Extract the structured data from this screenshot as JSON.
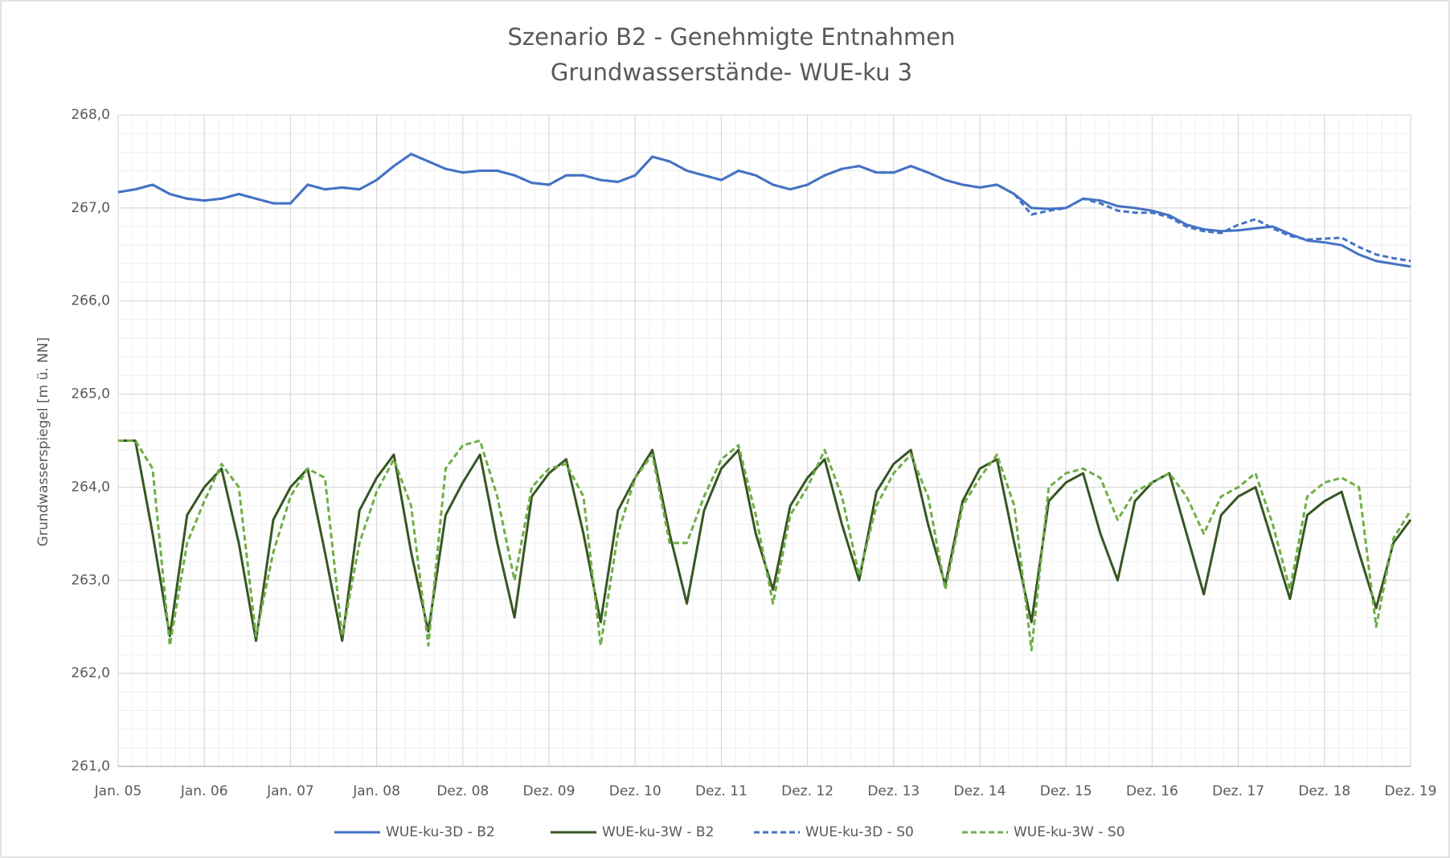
{
  "chart_data": {
    "type": "line",
    "title": "Szenario B2 - Genehmigte Entnahmen",
    "subtitle": "Grundwasserstände- WUE-ku 3",
    "y_label": "Grundwasserspiegel [m ü. NN]",
    "grid": true,
    "legend": "bottom",
    "xlim": [
      0,
      15
    ],
    "xticks": [
      {
        "value": 0,
        "label": "Jan. 05"
      },
      {
        "value": 1,
        "label": "Jan. 06"
      },
      {
        "value": 2,
        "label": "Jan. 07"
      },
      {
        "value": 3,
        "label": "Jan. 08"
      },
      {
        "value": 4,
        "label": "Dez. 08"
      },
      {
        "value": 5,
        "label": "Dez. 09"
      },
      {
        "value": 6,
        "label": "Dez. 10"
      },
      {
        "value": 7,
        "label": "Dez. 11"
      },
      {
        "value": 8,
        "label": "Dez. 12"
      },
      {
        "value": 9,
        "label": "Dez. 13"
      },
      {
        "value": 10,
        "label": "Dez. 14"
      },
      {
        "value": 11,
        "label": "Dez. 15"
      },
      {
        "value": 12,
        "label": "Dez. 16"
      },
      {
        "value": 13,
        "label": "Dez. 17"
      },
      {
        "value": 14,
        "label": "Dez. 18"
      },
      {
        "value": 15,
        "label": "Dez. 19"
      }
    ],
    "ylim": [
      261,
      268
    ],
    "yticks": [
      {
        "value": 261,
        "label": "261,0"
      },
      {
        "value": 262,
        "label": "262,0"
      },
      {
        "value": 263,
        "label": "263,0"
      },
      {
        "value": 264,
        "label": "264,0"
      },
      {
        "value": 265,
        "label": "265,0"
      },
      {
        "value": 266,
        "label": "266,0"
      },
      {
        "value": 267,
        "label": "267,0"
      },
      {
        "value": 268,
        "label": "268,0"
      }
    ],
    "x": [
      0,
      0.2,
      0.4,
      0.6,
      0.8,
      1,
      1.2,
      1.4,
      1.6,
      1.8,
      2,
      2.2,
      2.4,
      2.6,
      2.8,
      3,
      3.2,
      3.4,
      3.6,
      3.8,
      4,
      4.2,
      4.4,
      4.6,
      4.8,
      5,
      5.2,
      5.4,
      5.6,
      5.8,
      6,
      6.2,
      6.4,
      6.6,
      6.8,
      7,
      7.2,
      7.4,
      7.6,
      7.8,
      8,
      8.2,
      8.4,
      8.6,
      8.8,
      9,
      9.2,
      9.4,
      9.6,
      9.8,
      10,
      10.2,
      10.4,
      10.6,
      10.8,
      11,
      11.2,
      11.4,
      11.6,
      11.8,
      12,
      12.2,
      12.4,
      12.6,
      12.8,
      13,
      13.2,
      13.4,
      13.6,
      13.8,
      14,
      14.2,
      14.4,
      14.6,
      14.8,
      15
    ],
    "series": [
      {
        "name": "WUE-ku-3D - B2",
        "color": "#4472c4",
        "dashed": false,
        "values": [
          267.17,
          267.2,
          267.25,
          267.15,
          267.1,
          267.08,
          267.1,
          267.15,
          267.1,
          267.05,
          267.05,
          267.25,
          267.2,
          267.22,
          267.2,
          267.3,
          267.45,
          267.58,
          267.5,
          267.42,
          267.38,
          267.4,
          267.4,
          267.35,
          267.27,
          267.25,
          267.35,
          267.35,
          267.3,
          267.28,
          267.35,
          267.55,
          267.5,
          267.4,
          267.35,
          267.3,
          267.4,
          267.35,
          267.25,
          267.2,
          267.25,
          267.35,
          267.42,
          267.45,
          267.38,
          267.38,
          267.45,
          267.38,
          267.3,
          267.25,
          267.22,
          267.25,
          267.15,
          267.0,
          266.99,
          267.0,
          267.1,
          267.08,
          267.02,
          267.0,
          266.97,
          266.92,
          266.82,
          266.77,
          266.75,
          266.76,
          266.78,
          266.8,
          266.72,
          266.65,
          266.63,
          266.6,
          266.5,
          266.43,
          266.4,
          266.37
        ]
      },
      {
        "name": "WUE-ku-3W - B2",
        "color": "#375623",
        "dashed": false,
        "values": [
          264.5,
          264.5,
          263.5,
          262.4,
          263.7,
          264.0,
          264.2,
          263.4,
          262.35,
          263.65,
          264.0,
          264.2,
          263.3,
          262.35,
          263.75,
          264.1,
          264.35,
          263.3,
          262.45,
          263.7,
          264.05,
          264.35,
          263.4,
          262.6,
          263.9,
          264.15,
          264.3,
          263.5,
          262.55,
          263.75,
          264.1,
          264.4,
          263.5,
          262.75,
          263.75,
          264.2,
          264.4,
          263.5,
          262.9,
          263.8,
          264.1,
          264.3,
          263.6,
          263.0,
          263.95,
          264.25,
          264.4,
          263.6,
          262.95,
          263.85,
          264.2,
          264.3,
          263.4,
          262.55,
          263.85,
          264.05,
          264.15,
          263.5,
          263.0,
          263.85,
          264.05,
          264.15,
          263.5,
          262.85,
          263.7,
          263.9,
          264.0,
          263.4,
          262.8,
          263.7,
          263.85,
          263.95,
          263.3,
          262.7,
          263.4,
          263.65
        ]
      },
      {
        "name": "WUE-ku-3D - S0",
        "color": "#4472c4",
        "dashed": true,
        "values": [
          267.17,
          267.2,
          267.25,
          267.15,
          267.1,
          267.08,
          267.1,
          267.15,
          267.1,
          267.05,
          267.05,
          267.25,
          267.2,
          267.22,
          267.2,
          267.3,
          267.45,
          267.58,
          267.5,
          267.42,
          267.38,
          267.4,
          267.4,
          267.35,
          267.27,
          267.25,
          267.35,
          267.35,
          267.3,
          267.28,
          267.35,
          267.55,
          267.5,
          267.4,
          267.35,
          267.3,
          267.4,
          267.35,
          267.25,
          267.2,
          267.25,
          267.35,
          267.42,
          267.45,
          267.38,
          267.38,
          267.45,
          267.38,
          267.3,
          267.25,
          267.22,
          267.25,
          267.15,
          266.93,
          266.97,
          267.0,
          267.1,
          267.05,
          266.97,
          266.95,
          266.95,
          266.9,
          266.8,
          266.75,
          266.73,
          266.82,
          266.88,
          266.78,
          266.7,
          266.66,
          266.67,
          266.68,
          266.58,
          266.5,
          266.46,
          266.43
        ]
      },
      {
        "name": "WUE-ku-3W - S0",
        "color": "#70ad47",
        "dashed": true,
        "values": [
          264.5,
          264.5,
          264.2,
          262.3,
          263.4,
          263.85,
          264.25,
          264.0,
          262.4,
          263.3,
          263.9,
          264.2,
          264.1,
          262.4,
          263.4,
          263.95,
          264.3,
          263.8,
          262.3,
          264.2,
          264.45,
          264.5,
          263.9,
          263.0,
          264.0,
          264.2,
          264.25,
          263.9,
          262.3,
          263.5,
          264.1,
          264.35,
          263.4,
          263.4,
          263.9,
          264.3,
          264.45,
          263.7,
          262.75,
          263.7,
          264.0,
          264.4,
          263.9,
          263.05,
          263.8,
          264.15,
          264.35,
          263.9,
          262.9,
          263.8,
          264.1,
          264.35,
          263.8,
          262.25,
          264.0,
          264.15,
          264.2,
          264.1,
          263.65,
          263.95,
          264.05,
          264.15,
          263.9,
          263.5,
          263.9,
          264.0,
          264.15,
          263.6,
          262.9,
          263.9,
          264.05,
          264.1,
          264.0,
          262.5,
          263.45,
          263.75
        ]
      }
    ]
  }
}
